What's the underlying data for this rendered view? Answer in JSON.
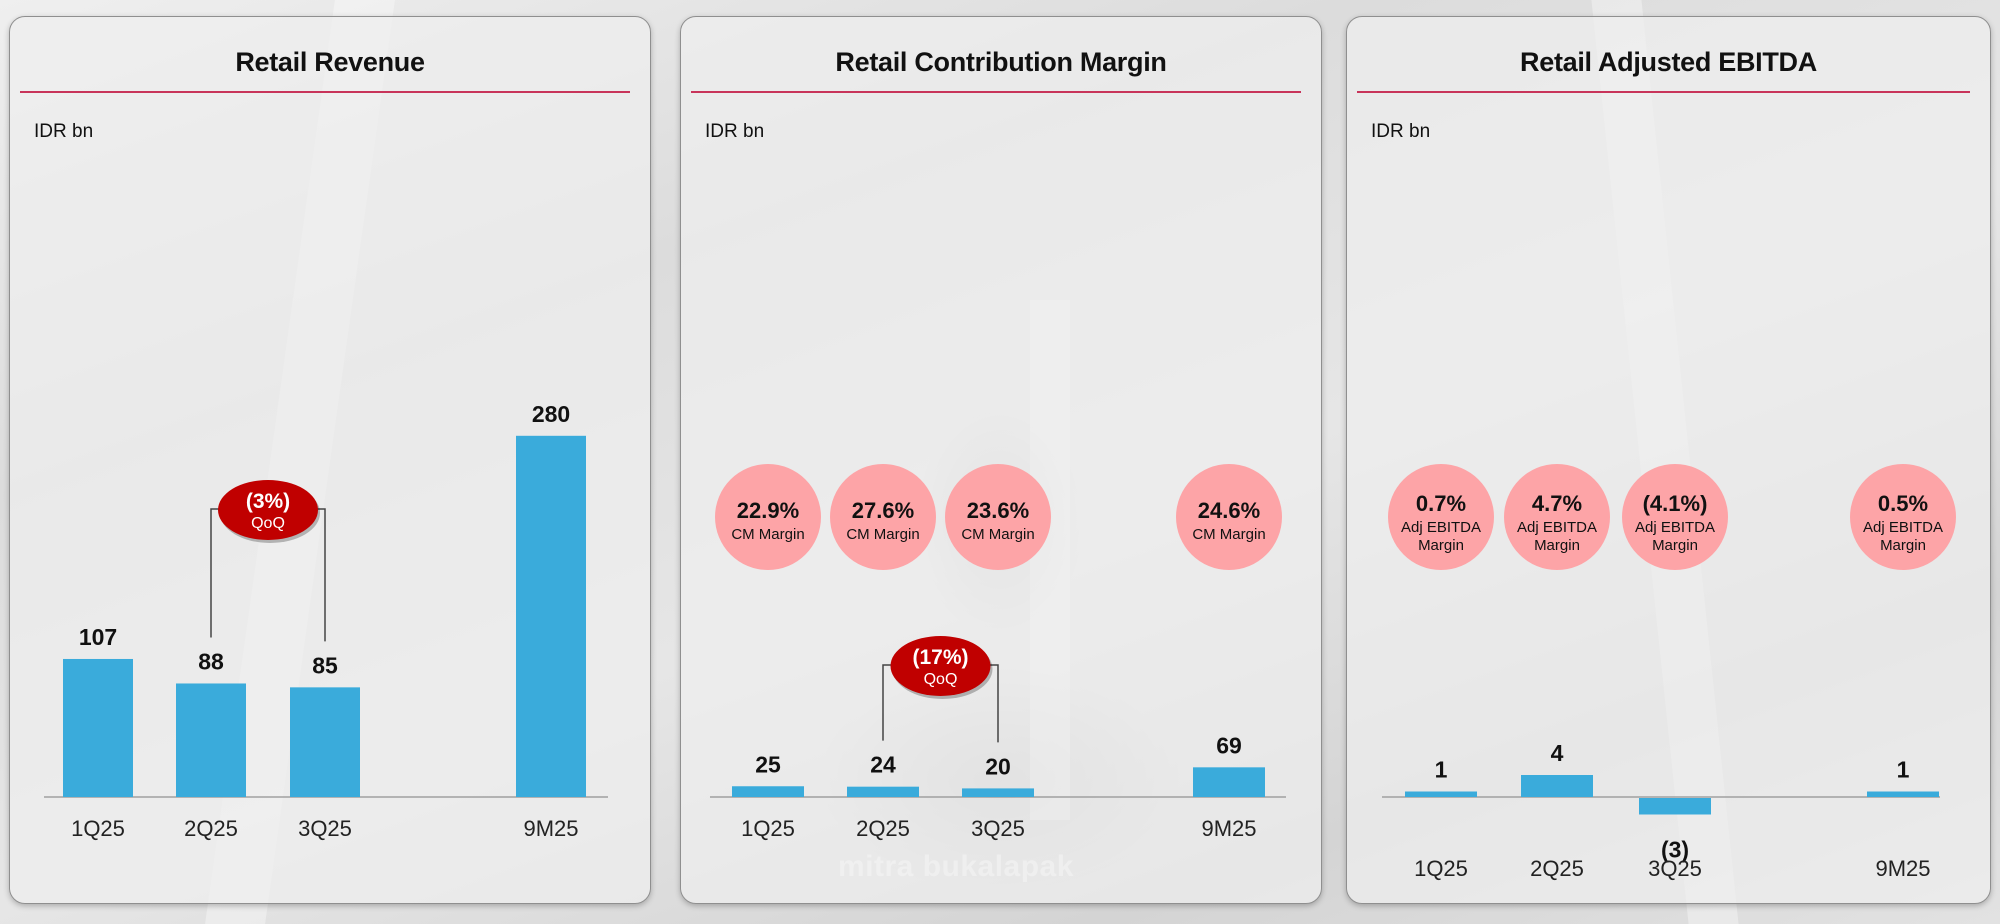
{
  "colors": {
    "bar": "#3aabdb",
    "title_rule": "#c8345a",
    "margin_circle": "#fda4a7",
    "qoq_badge": "#c00000",
    "axis": "#a0a0a0",
    "bracket": "#444444"
  },
  "background": {
    "watermark": "mitra bukalapak"
  },
  "chart_data": [
    {
      "type": "bar",
      "title": "Retail Revenue",
      "unit_label": "IDR bn",
      "categories": [
        "1Q25",
        "2Q25",
        "3Q25",
        "9M25"
      ],
      "values": [
        107,
        88,
        85,
        280
      ],
      "value_labels": [
        "107",
        "88",
        "85",
        "280"
      ],
      "qoq": {
        "from": "2Q25",
        "to": "3Q25",
        "value": "(3%)",
        "label": "QoQ"
      },
      "margins": null
    },
    {
      "type": "bar",
      "title": "Retail Contribution Margin",
      "unit_label": "IDR bn",
      "categories": [
        "1Q25",
        "2Q25",
        "3Q25",
        "9M25"
      ],
      "values": [
        25,
        24,
        20,
        69
      ],
      "value_labels": [
        "25",
        "24",
        "20",
        "69"
      ],
      "qoq": {
        "from": "2Q25",
        "to": "3Q25",
        "value": "(17%)",
        "label": "QoQ"
      },
      "margins": {
        "values": [
          "22.9%",
          "27.6%",
          "23.6%",
          "24.6%"
        ],
        "label_lines": [
          "CM Margin"
        ]
      }
    },
    {
      "type": "bar",
      "title": "Retail Adjusted EBITDA",
      "unit_label": "IDR bn",
      "categories": [
        "1Q25",
        "2Q25",
        "3Q25",
        "9M25"
      ],
      "values": [
        1,
        4,
        -3,
        1
      ],
      "value_labels": [
        "1",
        "4",
        "(3)",
        "1"
      ],
      "qoq": null,
      "margins": {
        "values": [
          "0.7%",
          "4.7%",
          "(4.1%)",
          "0.5%"
        ],
        "label_lines": [
          "Adj EBITDA",
          "Margin"
        ]
      }
    }
  ]
}
